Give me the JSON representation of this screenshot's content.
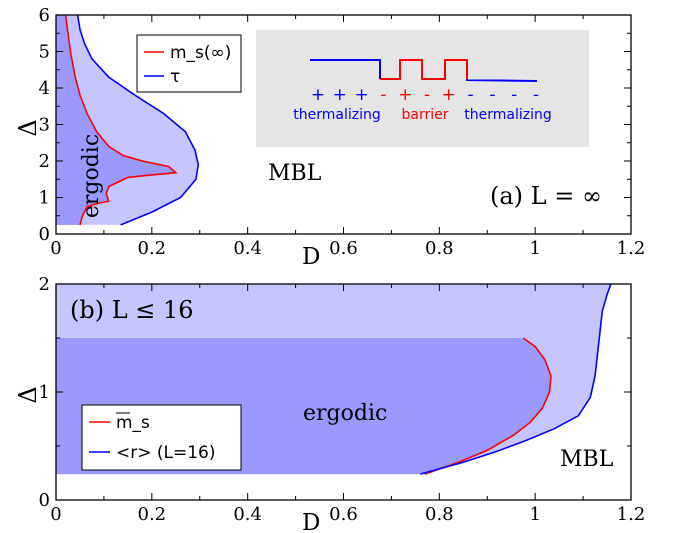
{
  "chart_data": [
    {
      "panel": "a",
      "type": "area",
      "title": "",
      "panel_label": "(a) L = ∞",
      "xlabel": "D",
      "ylabel": "Δ",
      "xlim": [
        0,
        1.2
      ],
      "ylim": [
        0,
        6
      ],
      "xticks": [
        "0",
        "0.2",
        "0.4",
        "0.6",
        "0.8",
        "1",
        "1.2"
      ],
      "yticks": [
        "0",
        "1",
        "2",
        "3",
        "4",
        "5",
        "6"
      ],
      "grid": false,
      "legend_placement": "top-left",
      "region_labels": [
        "ergodic",
        "MBL"
      ],
      "series": [
        {
          "name": "m_s(∞)",
          "color": "#ff0000",
          "fill": "#9999ff",
          "points": [
            [
              0.05,
              0.25
            ],
            [
              0.055,
              0.5
            ],
            [
              0.065,
              0.75
            ],
            [
              0.09,
              0.85
            ],
            [
              0.11,
              0.9
            ],
            [
              0.105,
              1.1
            ],
            [
              0.11,
              1.3
            ],
            [
              0.15,
              1.55
            ],
            [
              0.2,
              1.62
            ],
            [
              0.25,
              1.68
            ],
            [
              0.235,
              1.85
            ],
            [
              0.18,
              2.0
            ],
            [
              0.14,
              2.15
            ],
            [
              0.11,
              2.4
            ],
            [
              0.085,
              2.8
            ],
            [
              0.065,
              3.3
            ],
            [
              0.05,
              3.8
            ],
            [
              0.04,
              4.3
            ],
            [
              0.03,
              5.0
            ],
            [
              0.025,
              5.5
            ],
            [
              0.02,
              6.0
            ]
          ]
        },
        {
          "name": "τ",
          "color": "#0000ff",
          "fill": "#c5c5ff",
          "points": [
            [
              0.135,
              0.25
            ],
            [
              0.2,
              0.6
            ],
            [
              0.26,
              1.0
            ],
            [
              0.292,
              1.5
            ],
            [
              0.297,
              1.9
            ],
            [
              0.29,
              2.3
            ],
            [
              0.27,
              2.8
            ],
            [
              0.225,
              3.3
            ],
            [
              0.165,
              3.8
            ],
            [
              0.11,
              4.3
            ],
            [
              0.075,
              4.8
            ],
            [
              0.06,
              5.2
            ],
            [
              0.05,
              5.6
            ],
            [
              0.045,
              6.0
            ]
          ]
        }
      ],
      "inset": {
        "labels": [
          "thermalizing",
          "barrier",
          "thermalizing"
        ],
        "signs": [
          "+",
          "+",
          "+",
          "-",
          "+",
          "-",
          "+",
          "-",
          "-",
          "-",
          "-"
        ],
        "colors": {
          "thermalizing": "#0000ff",
          "barrier": "#ff0000",
          "background": "#e5e5e5"
        }
      }
    },
    {
      "panel": "b",
      "type": "area",
      "title": "",
      "panel_label": "(b) L ≤ 16",
      "xlabel": "D",
      "ylabel": "Δ",
      "xlim": [
        0,
        1.2
      ],
      "ylim": [
        0,
        2
      ],
      "xticks": [
        "0",
        "0.2",
        "0.4",
        "0.6",
        "0.8",
        "1",
        "1.2"
      ],
      "yticks": [
        "0",
        "1",
        "2"
      ],
      "grid": false,
      "legend_placement": "bottom-left",
      "region_labels": [
        "ergodic",
        "MBL"
      ],
      "series": [
        {
          "name": "m_s",
          "color": "#ff0000",
          "fill": "#9999ff",
          "points": [
            [
              0.975,
              1.5
            ],
            [
              1.0,
              1.42
            ],
            [
              1.02,
              1.3
            ],
            [
              1.033,
              1.15
            ],
            [
              1.03,
              1.0
            ],
            [
              1.015,
              0.85
            ],
            [
              0.99,
              0.72
            ],
            [
              0.955,
              0.6
            ],
            [
              0.9,
              0.46
            ],
            [
              0.84,
              0.35
            ],
            [
              0.77,
              0.24
            ]
          ]
        },
        {
          "name": "<r> (L=16)",
          "color": "#0000ff",
          "fill": "#c5c5ff",
          "points": [
            [
              0.76,
              0.24
            ],
            [
              0.85,
              0.35
            ],
            [
              0.92,
              0.45
            ],
            [
              0.98,
              0.55
            ],
            [
              1.04,
              0.66
            ],
            [
              1.09,
              0.78
            ],
            [
              1.115,
              0.95
            ],
            [
              1.125,
              1.15
            ],
            [
              1.13,
              1.35
            ],
            [
              1.135,
              1.55
            ],
            [
              1.14,
              1.75
            ],
            [
              1.15,
              1.9
            ],
            [
              1.158,
              2.0
            ]
          ]
        }
      ]
    }
  ]
}
